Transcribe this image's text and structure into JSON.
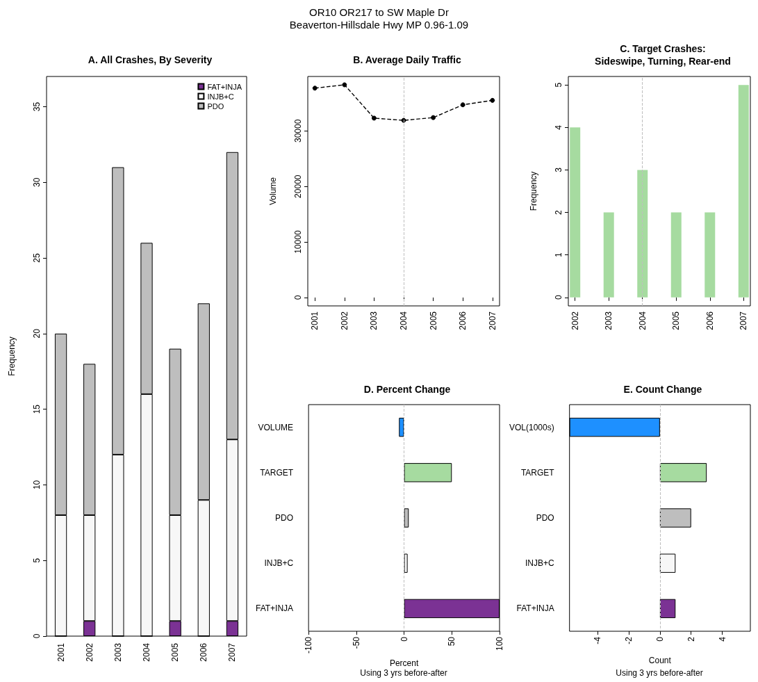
{
  "chart_data": [
    {
      "type": "other",
      "title": "OR10 OR217 to SW Maple Dr",
      "subtitle": "Beaverton-Hillsdale Hwy MP 0.96-1.09"
    },
    {
      "type": "bar",
      "title": "A. All Crashes, By Severity",
      "ylabel": "Frequency",
      "categories": [
        "2001",
        "2002",
        "2003",
        "2004",
        "2005",
        "2006",
        "2007"
      ],
      "stacked": true,
      "legend": "top right",
      "ylim": [
        0,
        37
      ],
      "yticks": [
        0,
        5,
        10,
        15,
        20,
        25,
        30,
        35
      ],
      "series": [
        {
          "name": "FAT+INJA",
          "color": "#7b3294",
          "values": [
            0,
            1,
            0,
            0,
            1,
            0,
            1
          ]
        },
        {
          "name": "INJB+C",
          "color": "#f7f7f7",
          "values": [
            8,
            7,
            12,
            16,
            7,
            9,
            12
          ]
        },
        {
          "name": "PDO",
          "color": "#bebebe",
          "values": [
            12,
            10,
            19,
            10,
            11,
            13,
            19
          ]
        }
      ]
    },
    {
      "type": "line",
      "title": "B. Average Daily Traffic",
      "ylabel": "Volume",
      "x": [
        2001,
        2002,
        2003,
        2004,
        2005,
        2006,
        2007
      ],
      "values": [
        37700,
        38300,
        32300,
        31900,
        32400,
        34700,
        35500
      ],
      "color": "#000000",
      "marker": "circle",
      "line_style": "dashed",
      "xlim": [
        2000.76,
        2007.24
      ],
      "xticks": [
        2001,
        2002,
        2003,
        2004,
        2005,
        2006,
        2007
      ],
      "ylim": [
        -1500,
        39800
      ],
      "yticks": [
        0,
        10000,
        20000,
        30000
      ],
      "ref_lines": [
        {
          "axis": "x",
          "value": 2004,
          "color": "#bebebe",
          "line_style": "dashed"
        }
      ]
    },
    {
      "type": "bar",
      "title": "C. Target Crashes:\nSideswipe, Turning, Rear-end",
      "ylabel": "Frequency",
      "x": [
        2002,
        2003,
        2004,
        2005,
        2006,
        2007
      ],
      "values": [
        4,
        2,
        3,
        2,
        2,
        5
      ],
      "color": "#a6dba0",
      "xlim": [
        2001.8,
        2007.2
      ],
      "xticks": [
        2002,
        2003,
        2004,
        2005,
        2006,
        2007
      ],
      "ylim": [
        -0.2,
        5.2
      ],
      "yticks": [
        0,
        1,
        2,
        3,
        4,
        5
      ],
      "ref_lines": [
        {
          "axis": "x",
          "value": 2004,
          "color": "#bebebe",
          "line_style": "dashed"
        }
      ]
    },
    {
      "type": "bar",
      "orientation": "horizontal",
      "title": "D. Percent Change",
      "xlabel": "Percent",
      "annotations": [
        "Using 3 yrs before-after"
      ],
      "categories": [
        "VOLUME",
        "TARGET",
        "PDO",
        "INJB+C",
        "FAT+INJA"
      ],
      "values": [
        -5.3,
        50,
        4.9,
        3.7,
        100
      ],
      "colors": [
        "#1e90ff",
        "#a6dba0",
        "#bebebe",
        "#f7f7f7",
        "#7b3294"
      ],
      "xlim": [
        -100,
        100
      ],
      "xticks": [
        -100,
        -50,
        0,
        50,
        100
      ],
      "ref_lines": [
        {
          "axis": "x",
          "value": 0,
          "color": "#bebebe",
          "line_style": "dashed"
        }
      ]
    },
    {
      "type": "bar",
      "orientation": "horizontal",
      "title": "E. Count Change",
      "xlabel": "Count",
      "annotations": [
        "Using 3 yrs before-after"
      ],
      "categories": [
        "VOL(1000s)",
        "TARGET",
        "PDO",
        "INJB+C",
        "FAT+INJA"
      ],
      "values": [
        -5.8,
        3,
        2,
        1,
        1
      ],
      "colors": [
        "#1e90ff",
        "#a6dba0",
        "#bebebe",
        "#f7f7f7",
        "#7b3294"
      ],
      "xlim": [
        -5.8,
        5.8
      ],
      "xticks": [
        -4,
        -2,
        0,
        2,
        4
      ],
      "ref_lines": [
        {
          "axis": "x",
          "value": 0,
          "color": "#bebebe",
          "line_style": "dashed"
        }
      ]
    }
  ]
}
